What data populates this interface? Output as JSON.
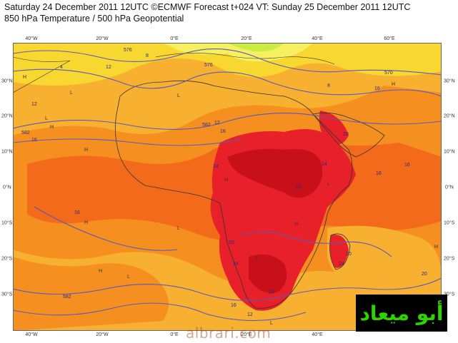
{
  "header": {
    "line1": "Saturday 24 December 2011 12UTC ©ECMWF Forecast t+024 VT: Sunday 25 December 2011 12UTC",
    "line2": "850 hPa Temperature / 500 hPa Geopotential"
  },
  "axes": {
    "lon_labels": [
      "40°W",
      "20°W",
      "0°E",
      "20°E",
      "40°E",
      "60°E"
    ],
    "lat_labels": [
      "30°N",
      "20°N",
      "10°N",
      "0°N",
      "10°S",
      "20°S",
      "30°S"
    ]
  },
  "contour_labels": [
    "576",
    "4",
    "12",
    "8",
    "576",
    "8",
    "570",
    "16",
    "12",
    "582",
    "16",
    "582",
    "12",
    "16",
    "20",
    "24",
    "24",
    "16",
    "16",
    "20",
    "16",
    "20",
    "20",
    "24",
    "24",
    "24",
    "20",
    "12",
    "16",
    "582"
  ],
  "pressure_markers": [
    "H",
    "L"
  ],
  "colors": {
    "very_warm": "#c8101a",
    "warm": "#e8202a",
    "hot": "#f04a18",
    "orange": "#f59020",
    "light_orange": "#f8b030",
    "yellow": "#f8d830",
    "pale_yellow": "#f6f060",
    "lime": "#c8ec40",
    "contour": "#5a5ab8",
    "coast": "#333333"
  },
  "logo_text": "أبو ميعاد",
  "watermark": "albrari.com"
}
